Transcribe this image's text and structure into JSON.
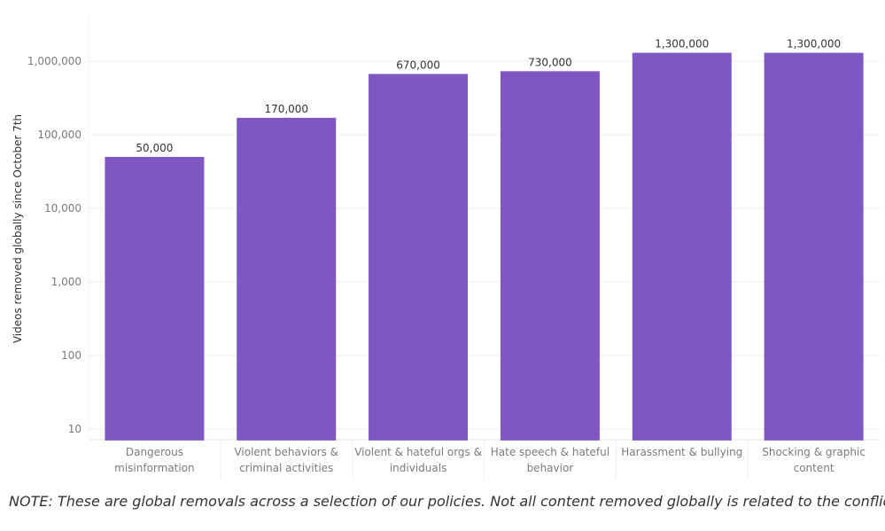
{
  "chart_data": {
    "type": "bar",
    "scale": "log",
    "ylabel": "Videos removed globally since October 7th",
    "ylim": [
      7,
      2000000
    ],
    "yticks": [
      10,
      100,
      1000,
      10000,
      100000,
      1000000
    ],
    "ytick_labels": [
      "10",
      "100",
      "1,000",
      "10,000",
      "100,000",
      "1,000,000"
    ],
    "categories": [
      [
        "Dangerous",
        "misinformation"
      ],
      [
        "Violent behaviors &",
        "criminal activities"
      ],
      [
        "Violent & hateful orgs &",
        "individuals"
      ],
      [
        "Hate speech & hateful",
        "behavior"
      ],
      [
        "Harassment & bullying"
      ],
      [
        "Shocking & graphic",
        "content"
      ]
    ],
    "values": [
      50000,
      170000,
      670000,
      730000,
      1300000,
      1300000
    ],
    "data_labels": [
      "50,000",
      "170,000",
      "670,000",
      "730,000",
      "1,300,000",
      "1,300,000"
    ],
    "grid": true,
    "colors": {
      "bar": "#7e57c2",
      "grid": "#eeeeee",
      "tick_text": "#7a7a7a",
      "label_text": "#333333"
    }
  },
  "note": "NOTE: These are global removals across a selection of our policies. Not all content removed globally is related to the conflict."
}
